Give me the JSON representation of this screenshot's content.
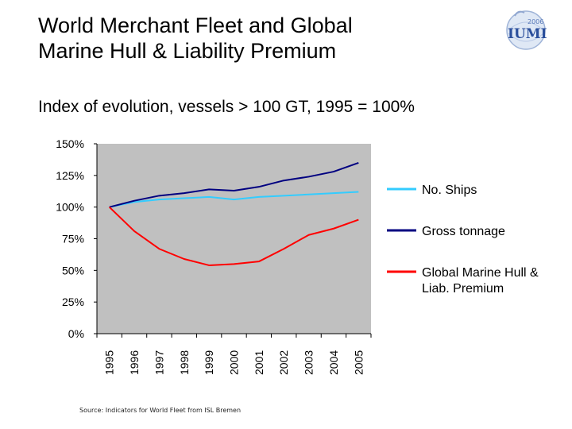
{
  "slide": {
    "title_line1": "World Merchant Fleet and Global",
    "title_line2": "Marine Hull & Liability Premium",
    "subtitle": "Index of evolution, vessels > 100 GT, 1995 = 100%",
    "source": "Source: Indicators for World Fleet from ISL Bremen",
    "logo": {
      "year": "2006",
      "text": "IUMI",
      "icon": "iumi-globe-logo-icon"
    }
  },
  "chart_data": {
    "type": "line",
    "title": "",
    "xlabel": "",
    "ylabel": "",
    "x": [
      "1995",
      "1996",
      "1997",
      "1998",
      "1999",
      "2000",
      "2001",
      "2002",
      "2003",
      "2004",
      "2005"
    ],
    "ylim": [
      0,
      150
    ],
    "yticks": [
      0,
      25,
      50,
      75,
      100,
      125,
      150
    ],
    "ytick_labels": [
      "0%",
      "25%",
      "50%",
      "75%",
      "100%",
      "125%",
      "150%"
    ],
    "grid": false,
    "legend_position": "right",
    "plot_background": "#c0c0c0",
    "series": [
      {
        "name": "No. Ships",
        "color": "#33ccff",
        "values": [
          100,
          104,
          106,
          107,
          108,
          106,
          108,
          109,
          110,
          111,
          112
        ]
      },
      {
        "name": "Gross tonnage",
        "color": "#000080",
        "values": [
          100,
          105,
          109,
          111,
          114,
          113,
          116,
          121,
          124,
          128,
          135
        ]
      },
      {
        "name": "Global Marine Hull & Liab. Premium",
        "color": "#ff0000",
        "legend_lines": [
          "Global Marine Hull &",
          "Liab. Premium"
        ],
        "values": [
          100,
          81,
          67,
          59,
          54,
          55,
          57,
          67,
          78,
          83,
          90
        ]
      }
    ]
  }
}
